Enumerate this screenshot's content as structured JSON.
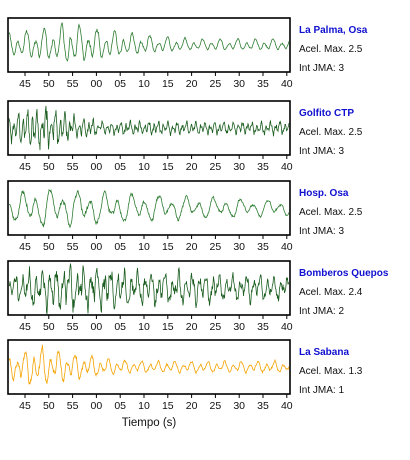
{
  "chart_data": {
    "type": "line",
    "xlabel": "Tiempo (s)",
    "x_tick_labels": [
      "45",
      "50",
      "55",
      "00",
      "05",
      "10",
      "15",
      "20",
      "25",
      "30",
      "35",
      "40"
    ],
    "panels": [
      {
        "station": "La Palma, Osa",
        "accel_line": "Acel. Max. 2.5",
        "jma_line": "Int JMA: 3",
        "color": "#2e7d32",
        "profile": {
          "onset": 0.0,
          "peak": 0.22,
          "decay": 0.35,
          "freq": 0.85,
          "noise": 0.18,
          "seed": 11
        }
      },
      {
        "station": "Golfito CTP",
        "accel_line": "Acel. Max. 2.5",
        "jma_line": "Int JMA: 3",
        "color": "#1b5e20",
        "profile": {
          "onset": 0.0,
          "peak": 0.12,
          "decay": 0.18,
          "freq": 1.6,
          "noise": 0.55,
          "seed": 23
        }
      },
      {
        "station": "Hosp. Osa",
        "accel_line": "Acel. Max. 2.5",
        "jma_line": "Int JMA: 3",
        "color": "#2e7d32",
        "profile": {
          "onset": 0.0,
          "peak": 0.1,
          "decay": 0.9,
          "freq": 0.55,
          "noise": 0.2,
          "seed": 37
        }
      },
      {
        "station": "Bomberos Quepos",
        "accel_line": "Acel. Max. 2.4",
        "jma_line": "Int JMA: 2",
        "color": "#1b5e20",
        "profile": {
          "onset": 0.0,
          "peak": 0.15,
          "decay": 1.2,
          "freq": 1.1,
          "noise": 0.6,
          "seed": 51
        }
      },
      {
        "station": "La Sabana",
        "accel_line": "Acel. Max. 1.3",
        "jma_line": "Int JMA: 1",
        "color": "#f5a300",
        "profile": {
          "onset": 0.0,
          "peak": 0.1,
          "decay": 0.28,
          "freq": 0.9,
          "noise": 0.25,
          "seed": 67
        }
      }
    ]
  }
}
